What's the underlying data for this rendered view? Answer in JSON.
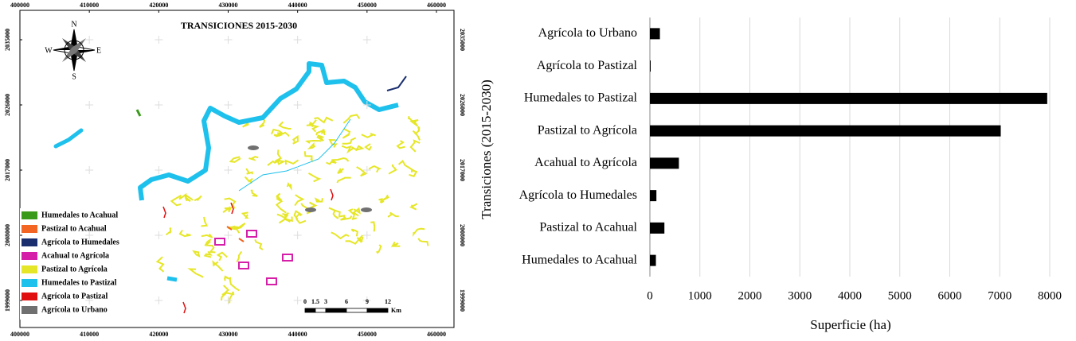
{
  "map": {
    "title": "TRANSICIONES 2015-2030",
    "xticks": [
      400000,
      410000,
      420000,
      430000,
      440000,
      450000,
      460000
    ],
    "yticks": [
      2035000,
      2026000,
      2017000,
      2008000,
      1999000
    ],
    "compass": {
      "n": "N",
      "s": "S",
      "e": "E",
      "w": "W"
    },
    "legend": [
      {
        "label": "Humedales to Acahual",
        "color": "#3a9a1a"
      },
      {
        "label": "Pastizal to Acahual",
        "color": "#f26522"
      },
      {
        "label": "Agrícola to Humedales",
        "color": "#1a2e6e"
      },
      {
        "label": "Acahual to Agrícola",
        "color": "#d61fa8"
      },
      {
        "label": "Pastizal to Agrícola",
        "color": "#e6e629"
      },
      {
        "label": "Humedales to Pastizal",
        "color": "#1ec0ec"
      },
      {
        "label": "Agrícola to Pastizal",
        "color": "#e01010"
      },
      {
        "label": "Agrícola to Urbano",
        "color": "#707070"
      }
    ],
    "scale": {
      "ticks": [
        0,
        1.5,
        3,
        6,
        9,
        12
      ],
      "unit": "Km"
    }
  },
  "chart_data": {
    "type": "bar",
    "orientation": "horizontal",
    "categories": [
      "Agrícola to Urbano",
      "Agrícola to Pastizal",
      "Humedales to Pastizal",
      "Pastizal to Agrícola",
      "Acahual to Agrícola",
      "Agrícola to Humedales",
      "Pastizal to Acahual",
      "Humedales to Acahual"
    ],
    "values": [
      200,
      10,
      7950,
      7020,
      580,
      130,
      290,
      120
    ],
    "color": "#000000",
    "xlim": [
      0,
      8000
    ],
    "xticks": [
      0,
      1000,
      2000,
      3000,
      4000,
      5000,
      6000,
      7000,
      8000
    ],
    "grid": true,
    "x_label": "Superficie  (ha)",
    "y_label": "Transiciones  (2015-2030)"
  }
}
